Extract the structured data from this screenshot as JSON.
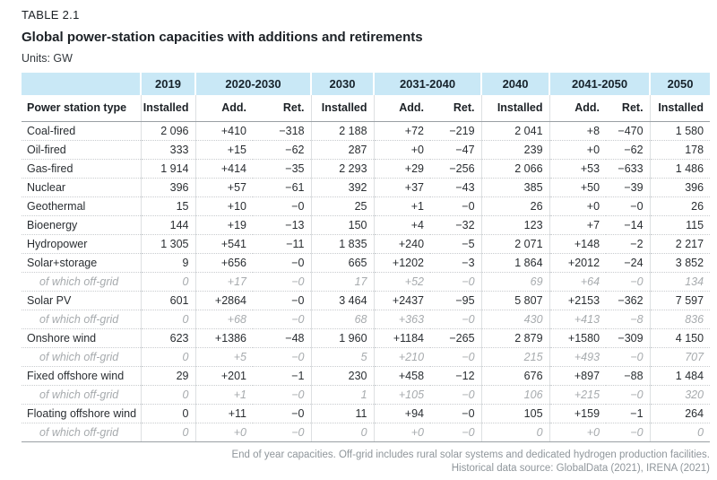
{
  "page": {
    "eyebrow": "TABLE 2.1",
    "title": "Global power-station capacities with additions and retirements",
    "units_line": "Units: GW"
  },
  "chart_data": {
    "type": "table",
    "title": "Global power-station capacities with additions and retirements",
    "units": "GW",
    "period_headers": [
      {
        "label": "2019",
        "span": 1
      },
      {
        "label": "2020-2030",
        "span": 2
      },
      {
        "label": "2030",
        "span": 1
      },
      {
        "label": "2031-2040",
        "span": 2
      },
      {
        "label": "2040",
        "span": 1
      },
      {
        "label": "2041-2050",
        "span": 2
      },
      {
        "label": "2050",
        "span": 1
      }
    ],
    "column_headers": [
      "Power station type",
      "Installed",
      "Add.",
      "Ret.",
      "Installed",
      "Add.",
      "Ret.",
      "Installed",
      "Add.",
      "Ret.",
      "Installed"
    ],
    "rows": [
      {
        "label": "Coal-fired",
        "offgrid": false,
        "values": [
          "2 096",
          "+410",
          "−318",
          "2 188",
          "+72",
          "−219",
          "2 041",
          "+8",
          "−470",
          "1 580"
        ]
      },
      {
        "label": "Oil-fired",
        "offgrid": false,
        "values": [
          "333",
          "+15",
          "−62",
          "287",
          "+0",
          "−47",
          "239",
          "+0",
          "−62",
          "178"
        ]
      },
      {
        "label": "Gas-fired",
        "offgrid": false,
        "values": [
          "1 914",
          "+414",
          "−35",
          "2 293",
          "+29",
          "−256",
          "2 066",
          "+53",
          "−633",
          "1 486"
        ]
      },
      {
        "label": "Nuclear",
        "offgrid": false,
        "values": [
          "396",
          "+57",
          "−61",
          "392",
          "+37",
          "−43",
          "385",
          "+50",
          "−39",
          "396"
        ]
      },
      {
        "label": "Geothermal",
        "offgrid": false,
        "values": [
          "15",
          "+10",
          "−0",
          "25",
          "+1",
          "−0",
          "26",
          "+0",
          "−0",
          "26"
        ]
      },
      {
        "label": "Bioenergy",
        "offgrid": false,
        "values": [
          "144",
          "+19",
          "−13",
          "150",
          "+4",
          "−32",
          "123",
          "+7",
          "−14",
          "115"
        ]
      },
      {
        "label": "Hydropower",
        "offgrid": false,
        "values": [
          "1 305",
          "+541",
          "−11",
          "1 835",
          "+240",
          "−5",
          "2 071",
          "+148",
          "−2",
          "2 217"
        ]
      },
      {
        "label": "Solar+storage",
        "offgrid": false,
        "values": [
          "9",
          "+656",
          "−0",
          "665",
          "+1202",
          "−3",
          "1 864",
          "+2012",
          "−24",
          "3 852"
        ]
      },
      {
        "label": "of which off-grid",
        "offgrid": true,
        "values": [
          "0",
          "+17",
          "−0",
          "17",
          "+52",
          "−0",
          "69",
          "+64",
          "−0",
          "134"
        ]
      },
      {
        "label": "Solar PV",
        "offgrid": false,
        "values": [
          "601",
          "+2864",
          "−0",
          "3 464",
          "+2437",
          "−95",
          "5 807",
          "+2153",
          "−362",
          "7 597"
        ]
      },
      {
        "label": "of which off-grid",
        "offgrid": true,
        "values": [
          "0",
          "+68",
          "−0",
          "68",
          "+363",
          "−0",
          "430",
          "+413",
          "−8",
          "836"
        ]
      },
      {
        "label": "Onshore wind",
        "offgrid": false,
        "values": [
          "623",
          "+1386",
          "−48",
          "1 960",
          "+1184",
          "−265",
          "2 879",
          "+1580",
          "−309",
          "4 150"
        ]
      },
      {
        "label": "of which off-grid",
        "offgrid": true,
        "values": [
          "0",
          "+5",
          "−0",
          "5",
          "+210",
          "−0",
          "215",
          "+493",
          "−0",
          "707"
        ]
      },
      {
        "label": "Fixed offshore wind",
        "offgrid": false,
        "values": [
          "29",
          "+201",
          "−1",
          "230",
          "+458",
          "−12",
          "676",
          "+897",
          "−88",
          "1 484"
        ]
      },
      {
        "label": "of which off-grid",
        "offgrid": true,
        "values": [
          "0",
          "+1",
          "−0",
          "1",
          "+105",
          "−0",
          "106",
          "+215",
          "−0",
          "320"
        ]
      },
      {
        "label": "Floating offshore wind",
        "offgrid": false,
        "values": [
          "0",
          "+11",
          "−0",
          "11",
          "+94",
          "−0",
          "105",
          "+159",
          "−1",
          "264"
        ]
      },
      {
        "label": "of which off-grid",
        "offgrid": true,
        "values": [
          "0",
          "+0",
          "−0",
          "0",
          "+0",
          "−0",
          "0",
          "+0",
          "−0",
          "0"
        ]
      }
    ]
  },
  "footnotes": {
    "note": "End of year capacities. Off-grid includes rural solar systems and dedicated hydrogen production facilities.",
    "source": "Historical data source: GlobalData (2021), IRENA (2021)"
  },
  "colors": {
    "header_band": "#c9e8f6",
    "text_dark": "#1c2126",
    "offgrid_gray": "#a7abae",
    "footnote_gray": "#8f969b"
  }
}
